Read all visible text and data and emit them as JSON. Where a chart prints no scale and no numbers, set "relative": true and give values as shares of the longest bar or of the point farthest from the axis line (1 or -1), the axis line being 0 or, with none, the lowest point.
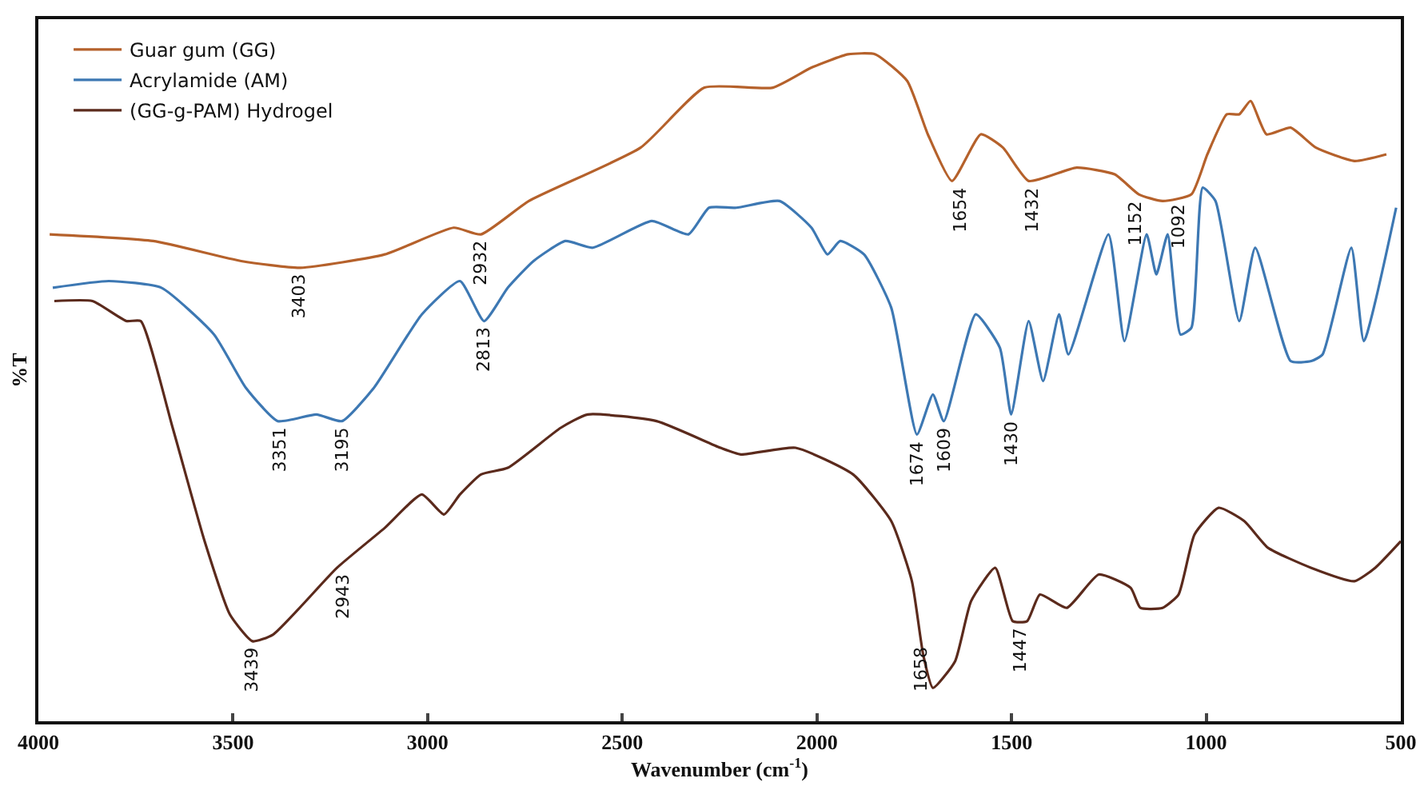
{
  "chart_data": {
    "type": "line",
    "relative": true,
    "xlabel": "Wavenumber (cm$^{-1}$)",
    "ylabel": "%T",
    "xlim": [
      4000,
      500
    ],
    "xticks": [
      4000,
      3500,
      3000,
      2500,
      2000,
      1500,
      1000,
      500
    ],
    "grid": false,
    "legend": "top left",
    "marker": "none",
    "line_style": "solid",
    "series": [
      {
        "name": "Guar gum (GG)",
        "color": "#b5612b",
        "x": [
          3971,
          3705,
          3479,
          3327,
          3110,
          2933,
          2863,
          2740,
          2453,
          2289,
          2113,
          2014,
          1920,
          1850,
          1768,
          1715,
          1653,
          1579,
          1522,
          1456,
          1333,
          1235,
          1173,
          1112,
          1038,
          997,
          947,
          915,
          886,
          845,
          783,
          718,
          619,
          537
        ],
        "values": [
          0.73,
          0.72,
          0.69,
          0.68,
          0.7,
          0.74,
          0.73,
          0.78,
          0.86,
          0.95,
          0.95,
          0.98,
          1.0,
          1.0,
          0.96,
          0.88,
          0.81,
          0.88,
          0.86,
          0.81,
          0.83,
          0.82,
          0.79,
          0.78,
          0.79,
          0.85,
          0.91,
          0.91,
          0.93,
          0.88,
          0.89,
          0.86,
          0.84,
          0.85
        ]
      },
      {
        "name": "Acrylamide (AM)",
        "color": "#3d78b3",
        "x": [
          3963,
          3819,
          3684,
          3549,
          3467,
          3385,
          3286,
          3220,
          3138,
          3015,
          2917,
          2855,
          2794,
          2728,
          2646,
          2576,
          2424,
          2330,
          2277,
          2207,
          2096,
          2014,
          1973,
          1940,
          1879,
          1809,
          1743,
          1702,
          1674,
          1592,
          1530,
          1501,
          1456,
          1419,
          1378,
          1354,
          1251,
          1210,
          1153,
          1128,
          1099,
          1066,
          1038,
          1009,
          976,
          915,
          874,
          783,
          730,
          701,
          627,
          595,
          512
        ],
        "values": [
          0.65,
          0.66,
          0.65,
          0.58,
          0.5,
          0.45,
          0.46,
          0.45,
          0.5,
          0.61,
          0.66,
          0.6,
          0.65,
          0.69,
          0.72,
          0.71,
          0.75,
          0.73,
          0.77,
          0.77,
          0.78,
          0.74,
          0.7,
          0.72,
          0.7,
          0.62,
          0.43,
          0.49,
          0.45,
          0.61,
          0.56,
          0.46,
          0.6,
          0.51,
          0.61,
          0.55,
          0.73,
          0.57,
          0.73,
          0.67,
          0.73,
          0.58,
          0.59,
          0.8,
          0.78,
          0.6,
          0.71,
          0.54,
          0.54,
          0.55,
          0.71,
          0.57,
          0.77
        ]
      },
      {
        "name": "(GG-g-PAM) Hydrogel",
        "color": "#5b2a1c",
        "x": [
          3959,
          3861,
          3774,
          3737,
          3655,
          3573,
          3508,
          3450,
          3397,
          3233,
          3110,
          3015,
          2958,
          2917,
          2863,
          2794,
          2658,
          2589,
          2412,
          2248,
          2195,
          2055,
          1907,
          1809,
          1756,
          1727,
          1702,
          1645,
          1604,
          1542,
          1497,
          1460,
          1427,
          1358,
          1276,
          1194,
          1169,
          1112,
          1071,
          1030,
          968,
          902,
          841,
          730,
          619,
          566,
          500
        ],
        "values": [
          0.63,
          0.63,
          0.6,
          0.6,
          0.44,
          0.27,
          0.16,
          0.12,
          0.13,
          0.23,
          0.29,
          0.34,
          0.31,
          0.34,
          0.37,
          0.38,
          0.44,
          0.46,
          0.45,
          0.41,
          0.4,
          0.41,
          0.37,
          0.3,
          0.21,
          0.1,
          0.05,
          0.09,
          0.18,
          0.23,
          0.15,
          0.15,
          0.19,
          0.17,
          0.22,
          0.2,
          0.17,
          0.17,
          0.19,
          0.28,
          0.32,
          0.3,
          0.26,
          0.23,
          0.21,
          0.23,
          0.27
        ]
      }
    ],
    "annotations": [
      {
        "text": "3403",
        "x": 3331,
        "y": 0.68
      },
      {
        "text": "2932",
        "x": 2863,
        "y": 0.73
      },
      {
        "text": "1654",
        "x": 1633,
        "y": 0.81
      },
      {
        "text": "1432",
        "x": 1448,
        "y": 0.81
      },
      {
        "text": "1152",
        "x": 1181,
        "y": 0.79
      },
      {
        "text": "1092",
        "x": 1071,
        "y": 0.785
      },
      {
        "text": "3351",
        "x": 3380,
        "y": 0.45
      },
      {
        "text": "3195",
        "x": 3220,
        "y": 0.45
      },
      {
        "text": "2813",
        "x": 2855,
        "y": 0.6
      },
      {
        "text": "1674",
        "x": 1743,
        "y": 0.43
      },
      {
        "text": "1609",
        "x": 1674,
        "y": 0.45
      },
      {
        "text": "1430",
        "x": 1501,
        "y": 0.46
      },
      {
        "text": "3439",
        "x": 3450,
        "y": 0.12
      },
      {
        "text": "2943",
        "x": 3220,
        "y": 0.23
      },
      {
        "text": "1658",
        "x": 1730,
        "y": 0.12
      },
      {
        "text": "1447",
        "x": 1477,
        "y": 0.15
      }
    ]
  }
}
